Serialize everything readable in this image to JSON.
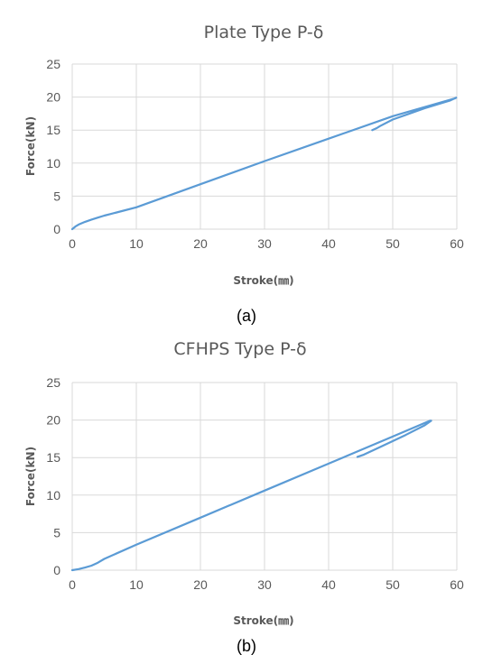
{
  "figure": {
    "colors": {
      "series": "#5b9bd5",
      "grid": "#d9d9d9",
      "text": "#595959"
    }
  },
  "chart_data": [
    {
      "type": "line",
      "title": "Plate Type P-δ",
      "xlabel": "Stroke(㎜)",
      "ylabel": "Force(kN)",
      "caption": "(a)",
      "xlim": [
        0,
        60
      ],
      "ylim": [
        0,
        25
      ],
      "xticks": [
        "0",
        "10",
        "20",
        "30",
        "40",
        "50",
        "60"
      ],
      "yticks": [
        "0",
        "5",
        "10",
        "15",
        "20",
        "25"
      ],
      "grid": true,
      "legend": "none",
      "series": [
        {
          "x": [
            0,
            0.5,
            1,
            2,
            3,
            4,
            5,
            6,
            8,
            10,
            20,
            30,
            40,
            50,
            59.7,
            59.9,
            59,
            55,
            50,
            48,
            47.5,
            46.8
          ],
          "y": [
            0,
            0.4,
            0.7,
            1.1,
            1.45,
            1.75,
            2.05,
            2.3,
            2.8,
            3.3,
            6.8,
            10.3,
            13.7,
            17.1,
            19.8,
            19.9,
            19.5,
            18.3,
            16.6,
            15.6,
            15.3,
            15.0
          ]
        }
      ]
    },
    {
      "type": "line",
      "title": "CFHPS Type P-δ",
      "xlabel": "Stroke(㎜)",
      "ylabel": "Force(kN)",
      "caption": "(b)",
      "xlim": [
        0,
        60
      ],
      "ylim": [
        0,
        25
      ],
      "xticks": [
        "0",
        "10",
        "20",
        "30",
        "40",
        "50",
        "60"
      ],
      "yticks": [
        "0",
        "5",
        "10",
        "15",
        "20",
        "25"
      ],
      "grid": true,
      "legend": "none",
      "series": [
        {
          "x": [
            0,
            1,
            2,
            3,
            4,
            5,
            10,
            20,
            30,
            40,
            50,
            55.8,
            56,
            55,
            52,
            48,
            45.5,
            44.5
          ],
          "y": [
            0,
            0.15,
            0.35,
            0.6,
            1.0,
            1.5,
            3.4,
            7.0,
            10.6,
            14.2,
            17.8,
            19.9,
            19.9,
            19.3,
            18.0,
            16.4,
            15.4,
            15.1
          ]
        }
      ]
    }
  ]
}
